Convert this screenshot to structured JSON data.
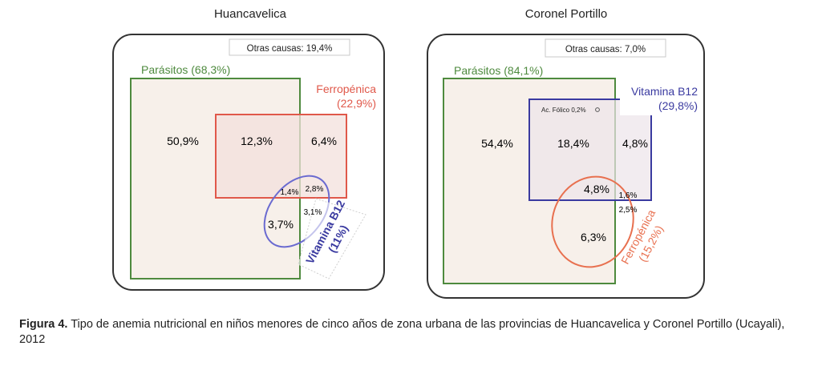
{
  "figure_number": "Figura 4.",
  "caption": "Tipo de anemia nutricional en niños menores de cinco años de zona urbana de las provincias de Huancavelica y Coronel Portillo (Ucayali), 2012",
  "colors": {
    "parasitos": "#4e8a3e",
    "ferropenica_left": "#e0584a",
    "ferropenica_right": "#e8704f",
    "vitamina_b12": "#3a3aa0",
    "vitamina_b12_ellipse": "#6a6ad0",
    "fill": "#f7f0ea"
  },
  "panels": [
    {
      "title": "Huancavelica",
      "otras_causas": "Otras causas: 19,4%",
      "parasitos": "Parásitos (68,3%)",
      "ferropenica": "Ferropénica",
      "ferropenica_pct": "(22,9%)",
      "vitamina": "Vitamina B12",
      "vitamina_pct": "(11%)",
      "regions": {
        "parasitos_only": "50,9%",
        "parasitos_ferro": "12,3%",
        "ferro_only": "6,4%",
        "par_ferro_vit": "1,4%",
        "ferro_vit": "2,8%",
        "vit_only": "3,1%",
        "par_vit": "3,7%"
      }
    },
    {
      "title": "Coronel Portillo",
      "otras_causas": "Otras causas: 7,0%",
      "parasitos": "Parásitos (84,1%)",
      "vitamina": "Vitamina B12",
      "vitamina_pct": "(29,8%)",
      "ac_folico": "Ac. Fólico 0,2%",
      "ferropenica": "Ferropénica",
      "ferropenica_pct": "(15,2%)",
      "regions": {
        "parasitos_only": "54,4%",
        "parasitos_vit": "18,4%",
        "vit_only": "4,8%",
        "par_vit_ferro": "4,8%",
        "vit_ferro": "1,6%",
        "ferro_only": "2,5%",
        "par_ferro": "6,3%"
      }
    }
  ]
}
